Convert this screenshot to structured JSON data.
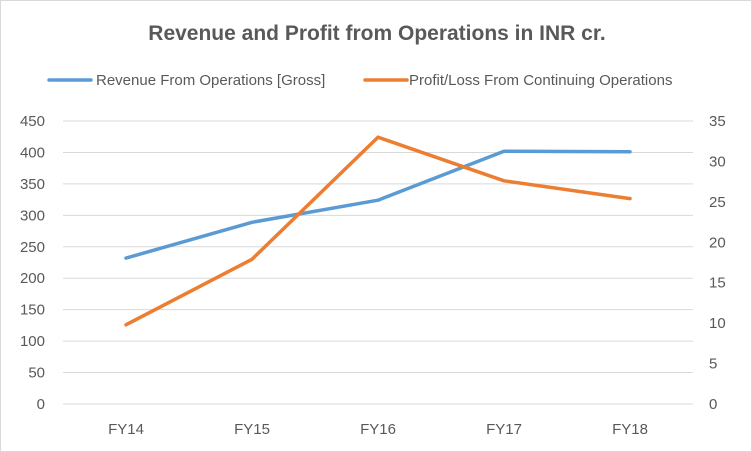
{
  "chart_data": {
    "type": "line",
    "title": "Revenue and Profit from Operations in INR cr.",
    "categories": [
      "FY14",
      "FY15",
      "FY16",
      "FY17",
      "FY18"
    ],
    "series": [
      {
        "name": "Revenue From Operations [Gross]",
        "axis": "left",
        "color": "#5b9bd5",
        "values": [
          232,
          289,
          324,
          402,
          401
        ]
      },
      {
        "name": "Profit/Loss From Continuing Operations",
        "axis": "right",
        "color": "#ed7d31",
        "values": [
          9.8,
          17.9,
          33.0,
          27.6,
          25.4
        ]
      }
    ],
    "y_left": {
      "min": 0,
      "max": 450,
      "step": 50
    },
    "y_right": {
      "min": 0,
      "max": 35,
      "step": 5
    },
    "grid": true,
    "legend_position": "top"
  }
}
